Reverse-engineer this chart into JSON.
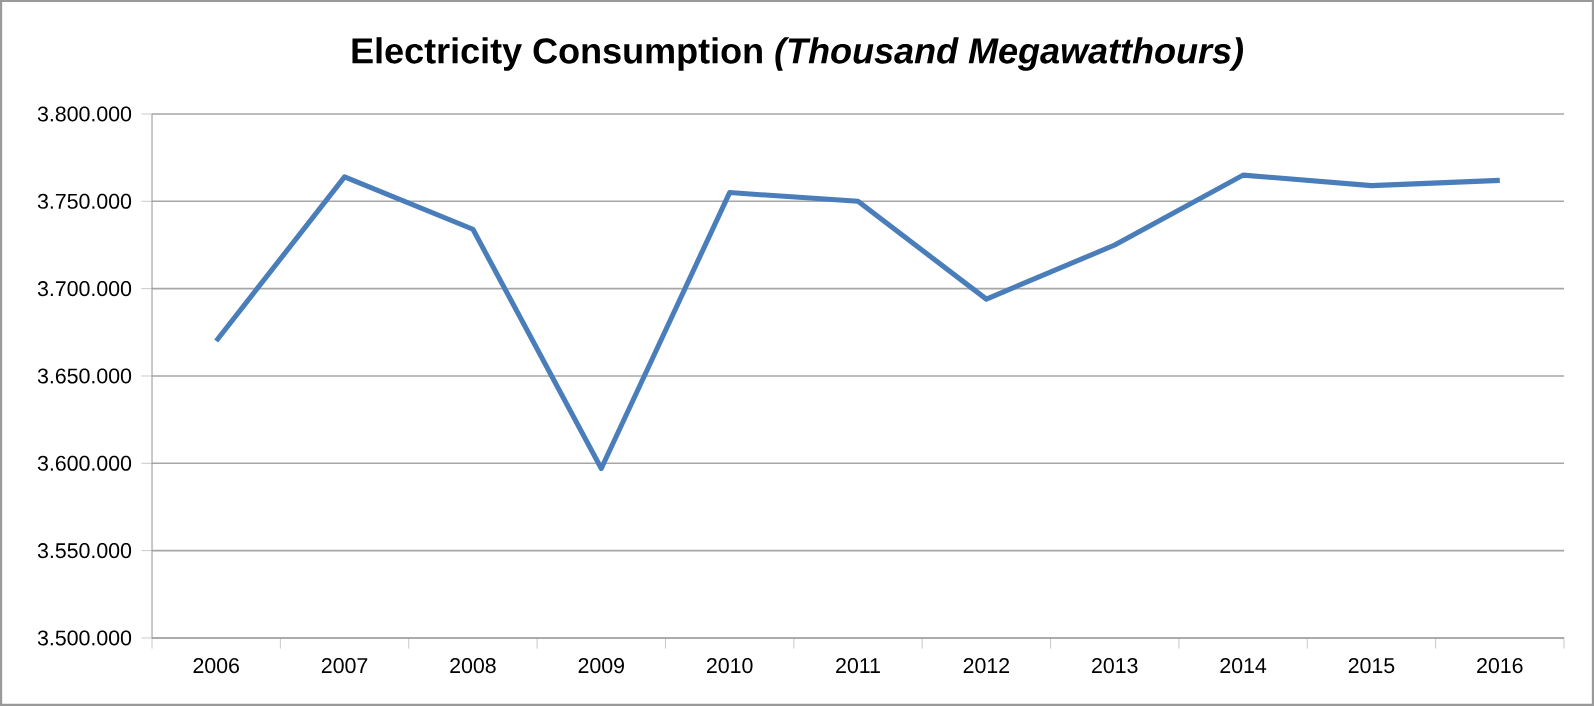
{
  "chart_data": {
    "type": "line",
    "title": "Electricity Consumption *(Thousand Megawatthours)*",
    "categories": [
      "2006",
      "2007",
      "2008",
      "2009",
      "2010",
      "2011",
      "2012",
      "2013",
      "2014",
      "2015",
      "2016"
    ],
    "series": [
      {
        "color": "#4a7ebb",
        "values": [
          3670000,
          3764000,
          3734000,
          3597000,
          3755000,
          3750000,
          3694000,
          3725000,
          3765000,
          3759000,
          3762000
        ]
      }
    ],
    "ylim": [
      3500000,
      3800000
    ],
    "yticks": [
      {
        "value": 3500000,
        "label": "3.500.000"
      },
      {
        "value": 3550000,
        "label": "3.550.000"
      },
      {
        "value": 3600000,
        "label": "3.600.000"
      },
      {
        "value": 3650000,
        "label": "3.650.000"
      },
      {
        "value": 3700000,
        "label": "3.700.000"
      },
      {
        "value": 3750000,
        "label": "3.750.000"
      },
      {
        "value": 3800000,
        "label": "3.800.000"
      }
    ],
    "grid": "y",
    "marker": "none",
    "line_style": "solid"
  }
}
